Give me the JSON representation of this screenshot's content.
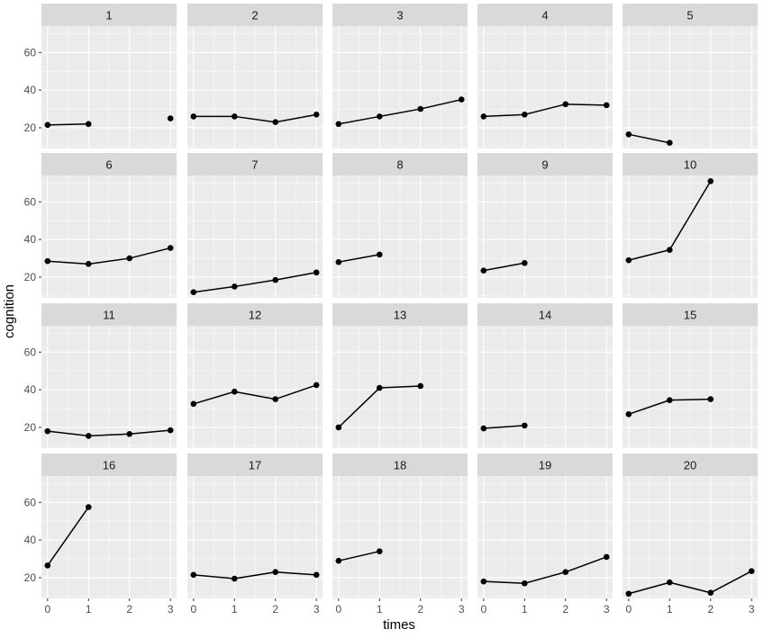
{
  "chart_data": {
    "type": "line",
    "facet_type": "wrap",
    "xlabel": "times",
    "ylabel": "cognition",
    "xlim": [
      -0.15,
      3.15
    ],
    "ylim": [
      9,
      74
    ],
    "x_ticks": [
      0,
      1,
      2,
      3
    ],
    "x_tick_labels": [
      "0",
      "1",
      "2",
      "3"
    ],
    "y_ticks": [
      20,
      40,
      60
    ],
    "y_tick_labels": [
      "20",
      "40",
      "60"
    ],
    "facets": [
      {
        "label": "1",
        "points": [
          [
            0,
            21.5
          ],
          [
            1,
            22
          ],
          [
            3,
            25
          ]
        ],
        "segments": [
          [
            0,
            1
          ]
        ]
      },
      {
        "label": "2",
        "points": [
          [
            0,
            26
          ],
          [
            1,
            26
          ],
          [
            2,
            23
          ],
          [
            3,
            27
          ]
        ]
      },
      {
        "label": "3",
        "points": [
          [
            0,
            22
          ],
          [
            1,
            26
          ],
          [
            2,
            30
          ],
          [
            3,
            35
          ]
        ]
      },
      {
        "label": "4",
        "points": [
          [
            0,
            26
          ],
          [
            1,
            27
          ],
          [
            2,
            32.5
          ],
          [
            3,
            32
          ]
        ]
      },
      {
        "label": "5",
        "points": [
          [
            0,
            16.5
          ],
          [
            1,
            12
          ]
        ]
      },
      {
        "label": "6",
        "points": [
          [
            0,
            28.5
          ],
          [
            1,
            27
          ],
          [
            2,
            30
          ],
          [
            3,
            35.5
          ]
        ]
      },
      {
        "label": "7",
        "points": [
          [
            0,
            12
          ],
          [
            1,
            15
          ],
          [
            2,
            18.5
          ],
          [
            3,
            22.5
          ]
        ]
      },
      {
        "label": "8",
        "points": [
          [
            0,
            28
          ],
          [
            1,
            32
          ]
        ]
      },
      {
        "label": "9",
        "points": [
          [
            0,
            23.5
          ],
          [
            1,
            27.5
          ]
        ]
      },
      {
        "label": "10",
        "points": [
          [
            0,
            29
          ],
          [
            1,
            34.5
          ],
          [
            2,
            71
          ]
        ]
      },
      {
        "label": "11",
        "points": [
          [
            0,
            18
          ],
          [
            1,
            15.5
          ],
          [
            2,
            16.5
          ],
          [
            3,
            18.5
          ]
        ]
      },
      {
        "label": "12",
        "points": [
          [
            0,
            32.5
          ],
          [
            1,
            39
          ],
          [
            2,
            35
          ],
          [
            3,
            42.5
          ]
        ]
      },
      {
        "label": "13",
        "points": [
          [
            0,
            20
          ],
          [
            1,
            41
          ],
          [
            2,
            42
          ]
        ]
      },
      {
        "label": "14",
        "points": [
          [
            0,
            19.5
          ],
          [
            1,
            21
          ]
        ]
      },
      {
        "label": "15",
        "points": [
          [
            0,
            27
          ],
          [
            1,
            34.5
          ],
          [
            2,
            35
          ]
        ]
      },
      {
        "label": "16",
        "points": [
          [
            0,
            26.5
          ],
          [
            1,
            57.5
          ]
        ]
      },
      {
        "label": "17",
        "points": [
          [
            0,
            21.5
          ],
          [
            1,
            19.5
          ],
          [
            2,
            23
          ],
          [
            3,
            21.5
          ]
        ]
      },
      {
        "label": "18",
        "points": [
          [
            0,
            29
          ],
          [
            1,
            34
          ]
        ]
      },
      {
        "label": "19",
        "points": [
          [
            0,
            18
          ],
          [
            1,
            17
          ],
          [
            2,
            23
          ],
          [
            3,
            31
          ]
        ]
      },
      {
        "label": "20",
        "points": [
          [
            0,
            11.5
          ],
          [
            1,
            17.5
          ],
          [
            2,
            12
          ],
          [
            3,
            23.5
          ]
        ]
      }
    ],
    "colors": {
      "panel_background": "#ebebeb",
      "strip_background": "#d9d9d9",
      "grid_major": "#ffffff",
      "line": "#000000",
      "point": "#000000"
    }
  }
}
